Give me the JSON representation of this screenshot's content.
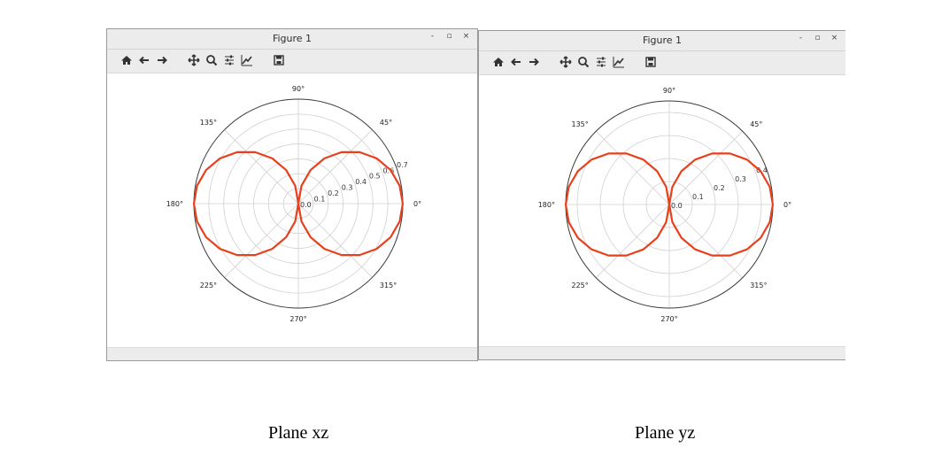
{
  "windows": [
    {
      "title": "Figure 1",
      "controls": {
        "minimize": "-",
        "maximize": "▫",
        "close": "×"
      },
      "toolbar": [
        "home-icon",
        "back-arrow-icon",
        "forward-arrow-icon",
        "pan-icon",
        "zoom-icon",
        "subplots-icon",
        "edit-axis-icon",
        "save-icon"
      ]
    },
    {
      "title": "Figure 1",
      "controls": {
        "minimize": "-",
        "maximize": "▫",
        "close": "×"
      },
      "toolbar": [
        "home-icon",
        "back-arrow-icon",
        "forward-arrow-icon",
        "pan-icon",
        "zoom-icon",
        "subplots-icon",
        "edit-axis-icon",
        "save-icon"
      ]
    }
  ],
  "captions": [
    "Plane xz",
    "Plane yz"
  ],
  "colors": {
    "curve": "#e8401c",
    "grid": "#d0d0d0",
    "frame": "#3a3a3a"
  },
  "chart_data": [
    {
      "type": "polar-line",
      "title": "",
      "function": "r = max_r * |cos(theta)|",
      "max_r": 0.7,
      "rlim": [
        0,
        0.7
      ],
      "rticks": [
        "0.0",
        "0.1",
        "0.2",
        "0.3",
        "0.4",
        "0.5",
        "0.6",
        "0.7"
      ],
      "angle_labels": [
        "0°",
        "45°",
        "90°",
        "135°",
        "180°",
        "225°",
        "270°",
        "315°"
      ],
      "grid": true
    },
    {
      "type": "polar-line",
      "title": "",
      "function": "r = max_r * |cos(theta)|",
      "max_r": 0.45,
      "rlim": [
        0,
        0.45
      ],
      "rticks": [
        "0.0",
        "0.1",
        "0.2",
        "0.3",
        "0.4"
      ],
      "angle_labels": [
        "0°",
        "45°",
        "90°",
        "135°",
        "180°",
        "225°",
        "270°",
        "315°"
      ],
      "grid": true
    }
  ]
}
